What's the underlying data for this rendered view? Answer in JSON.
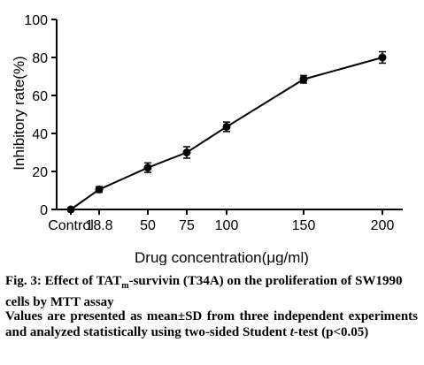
{
  "chart_data": {
    "type": "line",
    "title": "",
    "xlabel": "Drug concentration(",
    "xlabel_unit": "μg/ml)",
    "ylabel": "Inhibitory rate(%)",
    "ylim": [
      0,
      100
    ],
    "yticks": [
      "0",
      "20",
      "40",
      "60",
      "80",
      "100"
    ],
    "categories": [
      "Control",
      "18.8",
      "50",
      "75",
      "100",
      "150",
      "200"
    ],
    "x": [
      0,
      18.8,
      50,
      75,
      100,
      150,
      200
    ],
    "values": [
      0,
      10.5,
      22,
      30,
      43.5,
      68.5,
      80
    ],
    "errors": [
      0.8,
      1.5,
      2.5,
      3,
      2.5,
      2,
      3
    ],
    "grid": false,
    "legend": "none"
  },
  "caption": {
    "title_pre": "Fig. 3: Effect of TAT",
    "title_sub": "m",
    "title_post": "-survivin (T34A) on the proliferation of SW1990 cells by MTT assay",
    "note_line1": "Values are presented as mean±SD from three independent experiments and analyzed statistically using two-sided Student ",
    "note_italic": "t",
    "note_line2": "-test (p<0.05)"
  },
  "colors": {
    "ink": "#000000",
    "background": "#ffffff"
  }
}
